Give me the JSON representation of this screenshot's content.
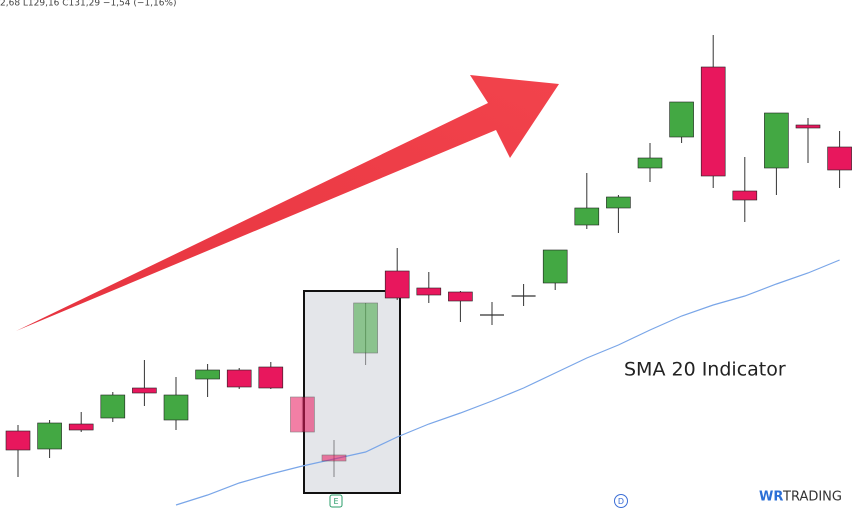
{
  "chart_data": {
    "type": "candlestick",
    "header": "2,68 L129,16 C131,29 −1,54 (−1,16%)",
    "annotation": "SMA 20 Indicator",
    "event_markers": [
      "E",
      "D"
    ],
    "logo": [
      "WR",
      "TRADING"
    ],
    "ylim": [
      0,
      510
    ],
    "up_color": "#43a843",
    "down_color": "#e8175d",
    "doji_color": "#333333",
    "candles": {
      "open": [
        79,
        61,
        86,
        92,
        122,
        90,
        131,
        140,
        143,
        113,
        55,
        157,
        239,
        222,
        218,
        195,
        214,
        227,
        285,
        302,
        342,
        373,
        443,
        319,
        342,
        385,
        363
      ],
      "high": [
        85,
        90,
        98,
        118,
        150,
        133,
        146,
        142,
        148,
        113,
        70,
        207,
        262,
        238,
        219,
        208,
        226,
        260,
        337,
        315,
        367,
        408,
        475,
        353,
        397,
        392,
        379
      ],
      "low": [
        33,
        52,
        78,
        88,
        104,
        80,
        113,
        121,
        121,
        78,
        33,
        145,
        210,
        207,
        188,
        185,
        204,
        220,
        281,
        277,
        328,
        367,
        322,
        288,
        315,
        347,
        322
      ],
      "close": [
        60,
        87,
        80,
        115,
        117,
        115,
        140,
        123,
        122,
        78,
        49,
        207,
        212,
        215,
        209,
        195,
        214,
        260,
        302,
        313,
        352,
        408,
        334,
        310,
        397,
        382,
        340
      ]
    },
    "highlighted": [
      9,
      10,
      11
    ],
    "series": [
      {
        "name": "SMA 20",
        "color": "#7aa6e8",
        "values": [
          null,
          null,
          null,
          null,
          null,
          5,
          15,
          27,
          36,
          44,
          51,
          58,
          73,
          86,
          97,
          109,
          122,
          137,
          152,
          165,
          180,
          194,
          205,
          214,
          226,
          237,
          250
        ]
      }
    ]
  }
}
